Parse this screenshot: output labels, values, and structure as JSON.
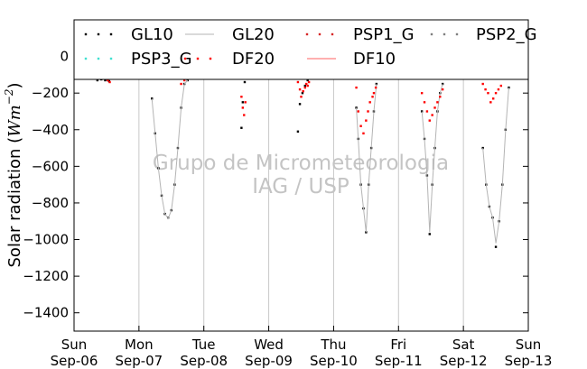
{
  "chart_data": {
    "type": "scatter",
    "title": "",
    "ylabel": "Solar radiation (W m^-2)",
    "ylabel_main": "Solar radiation (",
    "ylabel_unit": "Wm",
    "ylabel_exp": "−2",
    "ylabel_close": ")",
    "xlabel": "",
    "xlim_days": [
      0,
      7
    ],
    "ylim": [
      -1500,
      200
    ],
    "y_ticks": [
      0,
      -200,
      -400,
      -600,
      -800,
      -1000,
      -1200,
      -1400
    ],
    "x_ticks": [
      {
        "day": 0,
        "line1": "Sun",
        "line2": "Sep-06"
      },
      {
        "day": 1,
        "line1": "Mon",
        "line2": "Sep-07"
      },
      {
        "day": 2,
        "line1": "Tue",
        "line2": "Sep-08"
      },
      {
        "day": 3,
        "line1": "Wed",
        "line2": "Sep-09"
      },
      {
        "day": 4,
        "line1": "Thu",
        "line2": "Sep-10"
      },
      {
        "day": 5,
        "line1": "Fri",
        "line2": "Sep-11"
      },
      {
        "day": 6,
        "line1": "Sat",
        "line2": "Sep-12"
      },
      {
        "day": 7,
        "line1": "Sun",
        "line2": "Sep-13"
      }
    ],
    "grid": "vertical",
    "legend_position": "top",
    "watermark": [
      "Grupo de Micrometeorologia",
      "IAG / USP"
    ],
    "series": [
      {
        "name": "GL10",
        "color": "#000000",
        "style": "dots",
        "x": [
          0.3,
          0.36,
          0.42,
          0.48,
          0.54,
          1.2,
          1.25,
          1.3,
          1.35,
          1.4,
          1.45,
          1.5,
          1.55,
          1.6,
          1.65,
          1.7,
          1.75,
          2.58,
          2.6,
          2.63,
          3.45,
          3.48,
          3.52,
          3.56,
          3.6,
          4.35,
          4.38,
          4.42,
          4.46,
          4.5,
          4.54,
          4.58,
          4.62,
          4.66,
          5.36,
          5.4,
          5.44,
          5.48,
          5.52,
          5.56,
          5.6,
          5.64,
          5.68,
          6.3,
          6.35,
          6.4,
          6.45,
          6.5,
          6.55,
          6.6,
          6.65,
          6.7
        ],
        "y": [
          -120,
          -130,
          -125,
          -130,
          -135,
          -230,
          -420,
          -610,
          -760,
          -860,
          -880,
          -840,
          -700,
          -500,
          -280,
          -150,
          -130,
          -390,
          -250,
          -140,
          -410,
          -260,
          -200,
          -160,
          -130,
          -280,
          -450,
          -700,
          -830,
          -960,
          -700,
          -500,
          -300,
          -150,
          -300,
          -450,
          -650,
          -970,
          -700,
          -500,
          -300,
          -200,
          -150,
          -500,
          -700,
          -820,
          -880,
          -1040,
          -900,
          -700,
          -400,
          -170
        ]
      },
      {
        "name": "GL20",
        "color": "#b4b4b4",
        "style": "line",
        "x": [
          1.2,
          1.25,
          1.3,
          1.35,
          1.4,
          1.45,
          1.5,
          1.55,
          1.6,
          1.65,
          1.7,
          1.75,
          4.35,
          4.38,
          4.42,
          4.46,
          4.5,
          4.54,
          4.58,
          4.62,
          4.66,
          5.36,
          5.4,
          5.44,
          5.48,
          5.52,
          5.56,
          5.6,
          5.64,
          5.68,
          6.3,
          6.35,
          6.4,
          6.45,
          6.5,
          6.55,
          6.6,
          6.65,
          6.7
        ],
        "y": [
          -230,
          -420,
          -610,
          -760,
          -860,
          -885,
          -840,
          -700,
          -500,
          -280,
          -150,
          -130,
          -280,
          -450,
          -700,
          -830,
          -960,
          -700,
          -500,
          -300,
          -150,
          -300,
          -450,
          -650,
          -960,
          -700,
          -500,
          -300,
          -200,
          -150,
          -500,
          -700,
          -820,
          -880,
          -1020,
          -900,
          -700,
          -400,
          -170
        ]
      },
      {
        "name": "PSP1_G",
        "color": "#d62728",
        "style": "dots",
        "x": [],
        "y": []
      },
      {
        "name": "PSP2_G",
        "color": "#7f7f7f",
        "style": "dots",
        "x": [],
        "y": []
      },
      {
        "name": "PSP3_G",
        "color": "#40e0d0",
        "style": "dots",
        "x": [],
        "y": []
      },
      {
        "name": "DF20",
        "color": "#ff0000",
        "style": "dots",
        "x": [
          0.52,
          0.55,
          1.65,
          1.7,
          2.58,
          2.6,
          2.62,
          2.64,
          3.45,
          3.48,
          3.5,
          3.53,
          3.56,
          3.58,
          3.6,
          3.62,
          4.35,
          4.38,
          4.42,
          4.46,
          4.5,
          4.53,
          4.56,
          4.6,
          4.62,
          4.65,
          5.36,
          5.4,
          5.44,
          5.48,
          5.52,
          5.56,
          5.6,
          5.64,
          5.68,
          6.3,
          6.34,
          6.38,
          6.42,
          6.46,
          6.5,
          6.54,
          6.58
        ],
        "y": [
          -130,
          -140,
          -150,
          -130,
          -220,
          -280,
          -320,
          -250,
          -140,
          -180,
          -220,
          -190,
          -170,
          -150,
          -160,
          -140,
          -170,
          -300,
          -380,
          -420,
          -350,
          -300,
          -250,
          -220,
          -200,
          -170,
          -200,
          -250,
          -300,
          -350,
          -320,
          -280,
          -250,
          -220,
          -180,
          -150,
          -180,
          -200,
          -250,
          -230,
          -200,
          -180,
          -160
        ]
      },
      {
        "name": "DF10",
        "color": "#ff6060",
        "style": "line",
        "x": [],
        "y": []
      }
    ]
  }
}
